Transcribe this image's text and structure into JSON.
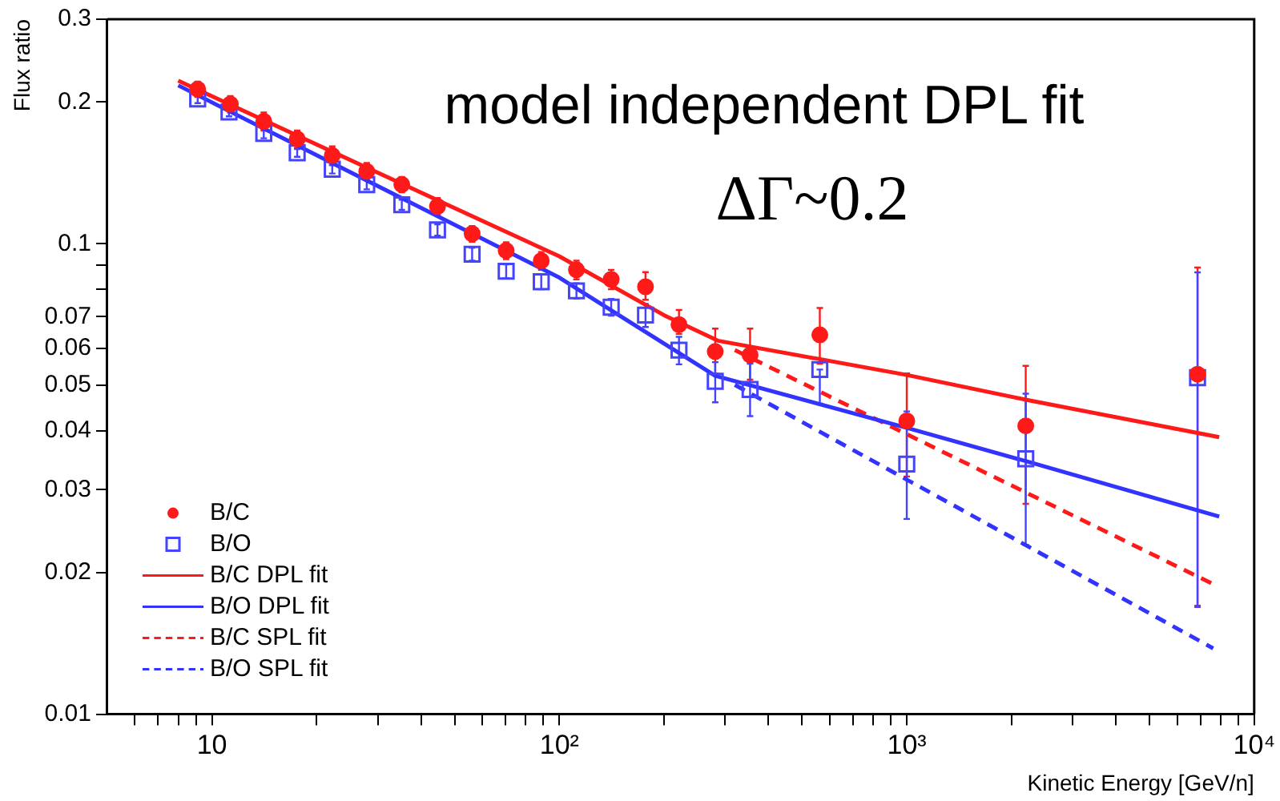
{
  "chart_data": {
    "type": "scatter",
    "xlabel": "Kinetic Energy [GeV/n]",
    "ylabel": "Flux ratio",
    "annotations": [
      "model independent DPL fit",
      "ΔΓ~0.2"
    ],
    "log": "xy",
    "legend": "bottom left",
    "xlim": [
      5,
      10000
    ],
    "xticks": [
      {
        "value": 6,
        "label": null
      },
      {
        "value": 7,
        "label": null
      },
      {
        "value": 8,
        "label": null
      },
      {
        "value": 9,
        "label": null
      },
      10,
      {
        "value": 20,
        "label": null
      },
      {
        "value": 30,
        "label": null
      },
      {
        "value": 40,
        "label": null
      },
      {
        "value": 50,
        "label": null
      },
      {
        "value": 60,
        "label": null
      },
      {
        "value": 70,
        "label": null
      },
      {
        "value": 80,
        "label": null
      },
      {
        "value": 90,
        "label": null
      },
      {
        "value": 100,
        "label": "10²"
      },
      {
        "value": 200,
        "label": null
      },
      {
        "value": 300,
        "label": null
      },
      {
        "value": 400,
        "label": null
      },
      {
        "value": 500,
        "label": null
      },
      {
        "value": 600,
        "label": null
      },
      {
        "value": 700,
        "label": null
      },
      {
        "value": 800,
        "label": null
      },
      {
        "value": 900,
        "label": null
      },
      {
        "value": 1000,
        "label": "10³"
      },
      {
        "value": 2000,
        "label": null
      },
      {
        "value": 3000,
        "label": null
      },
      {
        "value": 4000,
        "label": null
      },
      {
        "value": 5000,
        "label": null
      },
      {
        "value": 6000,
        "label": null
      },
      {
        "value": 7000,
        "label": null
      },
      {
        "value": 8000,
        "label": null
      },
      {
        "value": 9000,
        "label": null
      },
      {
        "value": 10000,
        "label": "10⁴"
      }
    ],
    "ylim": [
      0.01,
      0.3
    ],
    "yticks": [
      0.01,
      0.02,
      0.03,
      0.04,
      0.05,
      0.06,
      0.07,
      {
        "value": 0.08,
        "label": null
      },
      {
        "value": 0.09,
        "label": null
      },
      0.1,
      0.2,
      0.3
    ],
    "series": [
      {
        "name": "B/C",
        "type": "scatter",
        "marker": "circle",
        "color": "#ff1a1a",
        "x": [
          9.1,
          11.3,
          14.1,
          17.6,
          22.2,
          27.9,
          35.2,
          44.6,
          56.1,
          70.3,
          88.7,
          112,
          141,
          177,
          221,
          281,
          354,
          562,
          1000,
          2200,
          6870
        ],
        "values": [
          0.213,
          0.198,
          0.182,
          0.167,
          0.154,
          0.1425,
          0.1336,
          0.12,
          0.105,
          0.0967,
          0.092,
          0.088,
          0.084,
          0.081,
          0.0673,
          0.059,
          0.058,
          0.064,
          0.042,
          0.041,
          0.0528
        ],
        "errors": [
          0.008,
          0.008,
          0.008,
          0.007,
          0.007,
          0.006,
          0.005,
          0.005,
          0.004,
          0.004,
          0.004,
          0.004,
          0.004,
          [
            0.076,
            0.087
          ],
          [
            0.0643,
            0.0723
          ],
          [
            0.053,
            0.066
          ],
          [
            0.0514,
            0.066
          ],
          [
            0.0556,
            0.073
          ],
          [
            0.032,
            0.053
          ],
          [
            0.028,
            0.055
          ],
          [
            0.017,
            0.089
          ]
        ]
      },
      {
        "name": "B/O",
        "type": "scatter",
        "marker": "square",
        "color": "#4444ff",
        "x": [
          9.1,
          11.2,
          14.1,
          17.6,
          22.2,
          27.9,
          35.2,
          44.6,
          56.1,
          70.3,
          88.7,
          112,
          141,
          177,
          221,
          281,
          354,
          562,
          1000,
          2200,
          6870
        ],
        "values": [
          0.203,
          0.1905,
          0.1715,
          0.156,
          0.144,
          0.1335,
          0.121,
          0.107,
          0.095,
          0.0874,
          0.083,
          0.0794,
          0.0733,
          0.0705,
          0.0594,
          0.051,
          0.049,
          0.054,
          0.034,
          0.0349,
          0.0519
        ],
        "errors": [
          0.004,
          0.004,
          0.004,
          0.003,
          0.003,
          0.003,
          0.003,
          0.003,
          0.003,
          0.003,
          0.003,
          0.003,
          0.003,
          0.004,
          0.004,
          0.005,
          [
            0.043,
            0.0556
          ],
          [
            0.0457,
            0.054
          ],
          [
            0.026,
            0.044
          ],
          [
            0.0229,
            0.048
          ],
          0.035
        ]
      },
      {
        "name": "B/C DPL fit",
        "type": "line",
        "line_style": "solid",
        "marker": "none",
        "color": "#ff1a1a",
        "x": [
          8,
          100,
          200,
          286,
          1000,
          2200,
          7930
        ],
        "values": [
          0.222,
          0.094,
          0.0705,
          0.0622,
          0.0526,
          0.0466,
          0.0388
        ]
      },
      {
        "name": "B/O DPL fit",
        "type": "line",
        "line_style": "solid",
        "marker": "none",
        "color": "#3333ff",
        "x": [
          8,
          100,
          281,
          1000,
          2200,
          7930
        ],
        "values": [
          0.217,
          0.0847,
          0.0524,
          0.0406,
          0.0345,
          0.0263
        ]
      },
      {
        "name": "B/C SPL fit",
        "type": "line",
        "line_style": "dashed",
        "marker": "none",
        "color": "#ff1a1a",
        "x": [
          320,
          7620
        ],
        "values": [
          0.0594,
          0.0189
        ]
      },
      {
        "name": "B/O SPL fit",
        "type": "line",
        "line_style": "dashed",
        "marker": "none",
        "color": "#3333ff",
        "x": [
          320,
          7620
        ],
        "values": [
          0.0501,
          0.0138
        ]
      }
    ]
  }
}
